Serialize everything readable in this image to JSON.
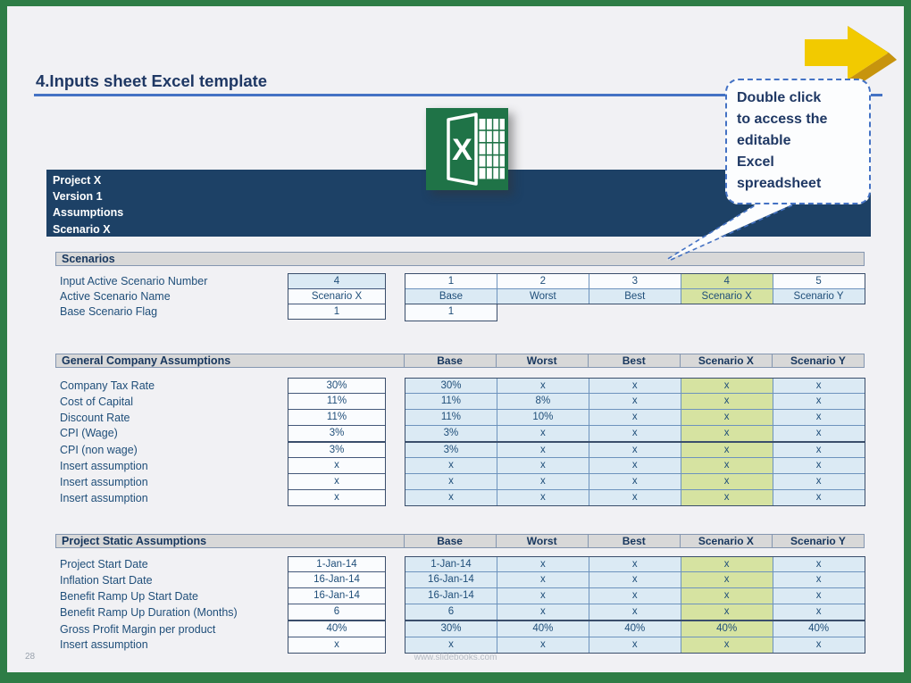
{
  "colors": {
    "border_green": "#2e7d46",
    "slide_bg": "#f1f1f4",
    "navy_bar": "#1d4166",
    "title_navy": "#1f3864",
    "accent_blue": "#4472c4",
    "cell_text": "#1f4e79",
    "header_gray": "#d8d8d8",
    "cell_blue": "#dbeaf4",
    "cell_white": "#fafcfe",
    "highlight_green": "#d6e3a1",
    "excel_green": "#1f7347",
    "arrow_yellow": "#f2ca00",
    "arrow_dark": "#5f4a0e",
    "arrow_amber": "#c7940d"
  },
  "slide": {
    "title": "4.Inputs sheet Excel template",
    "page_number": "28",
    "footer_url": "www.slidebooks.com"
  },
  "icons": {
    "excel": "excel-logo-icon",
    "arrow": "arrow-right-3d-icon"
  },
  "callout": {
    "text": "Double click to access the editable Excel spreadsheet",
    "lines": [
      "Double click",
      "to access the",
      "editable",
      "Excel",
      "spreadsheet"
    ]
  },
  "workbook_header": {
    "lines": [
      "Project X",
      "Version 1",
      "Assumptions",
      "Scenario X"
    ]
  },
  "sections": {
    "scenarios": {
      "title": "Scenarios",
      "rows": [
        {
          "label": "Input Active Scenario Number",
          "input": "4",
          "values": [
            "1",
            "2",
            "3",
            "4",
            "5"
          ]
        },
        {
          "label": "Active Scenario Name",
          "input": "Scenario X",
          "values": [
            "Base",
            "Worst",
            "Best",
            "Scenario X",
            "Scenario Y"
          ]
        },
        {
          "label": "Base Scenario Flag",
          "input": "1",
          "values": [
            "1"
          ]
        }
      ]
    },
    "general": {
      "title": "General Company Assumptions",
      "columns": [
        "Base",
        "Worst",
        "Best",
        "Scenario X",
        "Scenario Y"
      ],
      "rows": [
        {
          "label": "Company Tax Rate",
          "input": "30%",
          "values": [
            "30%",
            "x",
            "x",
            "x",
            "x"
          ]
        },
        {
          "label": "Cost of Capital",
          "input": "11%",
          "values": [
            "11%",
            "8%",
            "x",
            "x",
            "x"
          ]
        },
        {
          "label": "Discount Rate",
          "input": "11%",
          "values": [
            "11%",
            "10%",
            "x",
            "x",
            "x"
          ]
        },
        {
          "label": "CPI (Wage)",
          "input": "3%",
          "values": [
            "3%",
            "x",
            "x",
            "x",
            "x"
          ]
        },
        {
          "label": "CPI (non wage)",
          "input": "3%",
          "values": [
            "3%",
            "x",
            "x",
            "x",
            "x"
          ],
          "thick_top": true
        },
        {
          "label": "Insert assumption",
          "input": "x",
          "values": [
            "x",
            "x",
            "x",
            "x",
            "x"
          ]
        },
        {
          "label": "Insert assumption",
          "input": "x",
          "values": [
            "x",
            "x",
            "x",
            "x",
            "x"
          ]
        },
        {
          "label": "Insert assumption",
          "input": "x",
          "values": [
            "x",
            "x",
            "x",
            "x",
            "x"
          ]
        }
      ]
    },
    "project": {
      "title": "Project Static Assumptions",
      "columns": [
        "Base",
        "Worst",
        "Best",
        "Scenario X",
        "Scenario Y"
      ],
      "rows": [
        {
          "label": "Project Start Date",
          "input": "1-Jan-14",
          "values": [
            "1-Jan-14",
            "x",
            "x",
            "x",
            "x"
          ]
        },
        {
          "label": "Inflation Start Date",
          "input": "16-Jan-14",
          "values": [
            "16-Jan-14",
            "x",
            "x",
            "x",
            "x"
          ]
        },
        {
          "label": "Benefit Ramp Up Start Date",
          "input": "16-Jan-14",
          "values": [
            "16-Jan-14",
            "x",
            "x",
            "x",
            "x"
          ]
        },
        {
          "label": "Benefit Ramp Up Duration (Months)",
          "input": "6",
          "values": [
            "6",
            "x",
            "x",
            "x",
            "x"
          ]
        },
        {
          "label": "Gross Profit Margin per product",
          "input": "40%",
          "values": [
            "30%",
            "40%",
            "40%",
            "40%",
            "40%"
          ],
          "thick_top": true
        },
        {
          "label": "Insert assumption",
          "input": "x",
          "values": [
            "x",
            "x",
            "x",
            "x",
            "x"
          ]
        }
      ]
    }
  }
}
